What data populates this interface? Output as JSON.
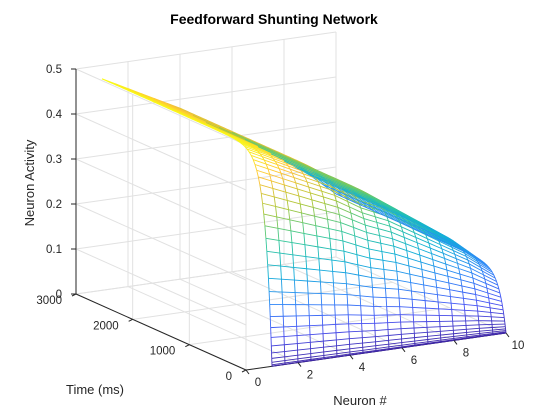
{
  "chart_data": {
    "type": "surface3d",
    "title": "Feedforward Shunting Network",
    "xlabel": "Neuron #",
    "ylabel": "Time (ms)",
    "zlabel": "Neuron Activity",
    "xlim": [
      0,
      10
    ],
    "ylim": [
      0,
      3000
    ],
    "zlim": [
      0,
      0.5
    ],
    "x_ticks": [
      "0",
      "2",
      "4",
      "6",
      "8",
      "10"
    ],
    "y_ticks": [
      "0",
      "1000",
      "2000",
      "3000"
    ],
    "z_ticks": [
      "0",
      "0.1",
      "0.2",
      "0.3",
      "0.4",
      "0.5"
    ],
    "neuron_range": [
      1,
      10
    ],
    "time_range": [
      0,
      3000
    ],
    "activity_at_final_time": {
      "neuron": [
        1,
        2,
        3,
        4,
        5,
        6,
        7,
        8,
        9,
        10
      ],
      "activity": [
        0.47,
        0.44,
        0.41,
        0.38,
        0.34,
        0.31,
        0.27,
        0.23,
        0.19,
        0.14
      ]
    },
    "activity_at_time_zero": 0.0,
    "colormap": "parula",
    "grid": true
  }
}
